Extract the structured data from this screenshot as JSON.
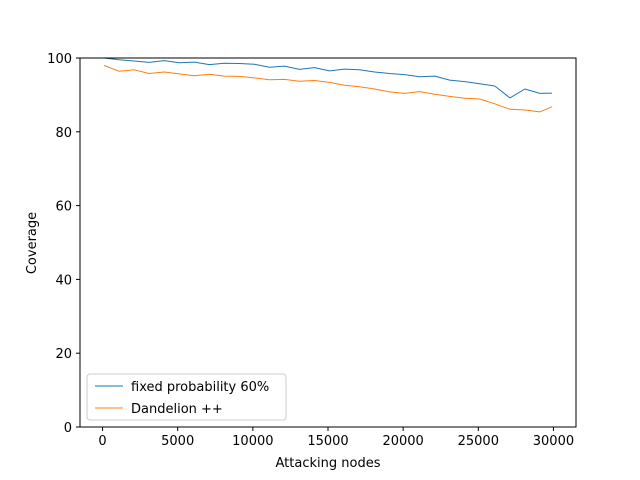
{
  "chart_data": {
    "type": "line",
    "title": "",
    "xlabel": "Attacking nodes",
    "ylabel": "Coverage",
    "xlim": [
      -1500,
      31500
    ],
    "ylim": [
      0,
      100
    ],
    "xticks": [
      0,
      5000,
      10000,
      15000,
      20000,
      25000,
      30000
    ],
    "yticks": [
      0,
      20,
      40,
      60,
      80,
      100
    ],
    "grid": false,
    "legend_position": "lower-left",
    "x": [
      100,
      1100,
      2100,
      3100,
      4100,
      5100,
      6100,
      7100,
      8100,
      9100,
      10100,
      11100,
      12100,
      13100,
      14100,
      15100,
      16100,
      17100,
      18100,
      19100,
      20100,
      21100,
      22100,
      23100,
      24100,
      25100,
      26100,
      27100,
      28100,
      29100,
      29900
    ],
    "series": [
      {
        "name": "fixed probability 60%",
        "color": "#1f77b4",
        "values": [
          100,
          99.5,
          99.2,
          98.8,
          99.3,
          98.7,
          98.9,
          98.2,
          98.6,
          98.5,
          98.3,
          97.5,
          97.8,
          96.9,
          97.4,
          96.5,
          97.0,
          96.8,
          96.2,
          95.8,
          95.5,
          94.9,
          95.1,
          94.0,
          93.6,
          93.0,
          92.4,
          89.2,
          91.6,
          90.4,
          90.5
        ]
      },
      {
        "name": "Dandelion ++",
        "color": "#ff7f0e",
        "values": [
          98.0,
          96.4,
          96.8,
          95.8,
          96.2,
          95.7,
          95.2,
          95.6,
          95.1,
          95.0,
          94.6,
          94.1,
          94.2,
          93.7,
          93.9,
          93.4,
          92.6,
          92.2,
          91.6,
          90.8,
          90.4,
          90.9,
          90.2,
          89.6,
          89.1,
          88.9,
          87.6,
          86.1,
          85.9,
          85.4,
          86.8
        ]
      }
    ]
  }
}
